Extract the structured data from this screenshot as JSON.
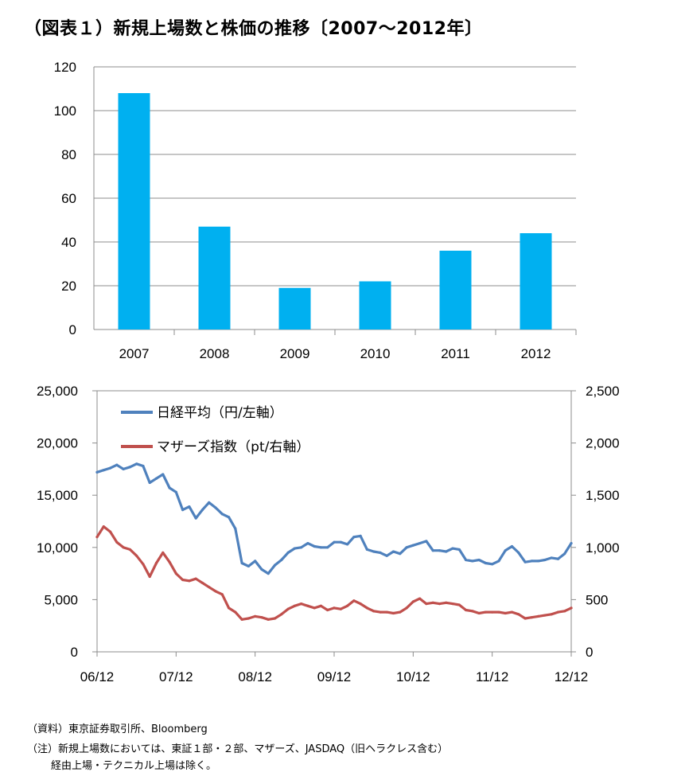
{
  "title": "（図表１）新規上場数と株価の推移〔2007～2012年〕",
  "chart_data": [
    {
      "type": "bar",
      "categories": [
        "2007",
        "2008",
        "2009",
        "2010",
        "2011",
        "2012"
      ],
      "values": [
        108,
        47,
        19,
        22,
        36,
        44
      ],
      "ylim": [
        0,
        120
      ],
      "yticks": [
        "0",
        "20",
        "40",
        "60",
        "80",
        "100",
        "120"
      ],
      "grid": true,
      "color": "#00B0F0"
    },
    {
      "type": "line",
      "x_ticks": [
        "06/12",
        "07/12",
        "08/12",
        "09/12",
        "10/12",
        "11/12",
        "12/12"
      ],
      "y_left": {
        "ticks": [
          "0",
          "5,000",
          "10,000",
          "15,000",
          "20,000",
          "25,000"
        ],
        "range": [
          0,
          25000
        ]
      },
      "y_right": {
        "ticks": [
          "0",
          "500",
          "1,000",
          "1,500",
          "2,000",
          "2,500"
        ],
        "range": [
          0,
          2500
        ]
      },
      "legend_position": "top-left",
      "series": [
        {
          "name": "日経平均（円/左軸）",
          "color": "#4F81BD",
          "axis": "left",
          "x": [
            "06/12",
            "07/01",
            "07/02",
            "07/03",
            "07/04",
            "07/05",
            "07/06",
            "07/07",
            "07/08",
            "07/09",
            "07/10",
            "07/11",
            "07/12",
            "08/01",
            "08/02",
            "08/03",
            "08/04",
            "08/05",
            "08/06",
            "08/07",
            "08/08",
            "08/09",
            "08/10",
            "08/11",
            "08/12",
            "09/01",
            "09/02",
            "09/03",
            "09/04",
            "09/05",
            "09/06",
            "09/07",
            "09/08",
            "09/09",
            "09/10",
            "09/11",
            "09/12",
            "10/01",
            "10/02",
            "10/03",
            "10/04",
            "10/05",
            "10/06",
            "10/07",
            "10/08",
            "10/09",
            "10/10",
            "10/11",
            "10/12",
            "11/01",
            "11/02",
            "11/03",
            "11/04",
            "11/05",
            "11/06",
            "11/07",
            "11/08",
            "11/09",
            "11/10",
            "11/11",
            "11/12",
            "12/01",
            "12/02",
            "12/03",
            "12/04",
            "12/05",
            "12/06",
            "12/07",
            "12/08",
            "12/09",
            "12/10",
            "12/11",
            "12/12"
          ],
          "values": [
            17200,
            17400,
            17600,
            17900,
            17500,
            17700,
            18000,
            17800,
            16200,
            16600,
            17000,
            15700,
            15300,
            13600,
            13900,
            12800,
            13600,
            14300,
            13800,
            13200,
            12900,
            11800,
            8500,
            8200,
            8700,
            7900,
            7500,
            8300,
            8800,
            9500,
            9900,
            10000,
            10400,
            10100,
            10000,
            10000,
            10500,
            10500,
            10300,
            11000,
            11100,
            9800,
            9600,
            9500,
            9200,
            9600,
            9400,
            10000,
            10200,
            10400,
            10600,
            9700,
            9700,
            9600,
            9900,
            9800,
            8800,
            8700,
            8800,
            8500,
            8400,
            8700,
            9700,
            10100,
            9500,
            8600,
            8700,
            8700,
            8800,
            9000,
            8900,
            9400,
            10400
          ]
        },
        {
          "name": "マザーズ指数（pt/右軸）",
          "color": "#C0504D",
          "axis": "right",
          "x": [
            "06/12",
            "07/01",
            "07/02",
            "07/03",
            "07/04",
            "07/05",
            "07/06",
            "07/07",
            "07/08",
            "07/09",
            "07/10",
            "07/11",
            "07/12",
            "08/01",
            "08/02",
            "08/03",
            "08/04",
            "08/05",
            "08/06",
            "08/07",
            "08/08",
            "08/09",
            "08/10",
            "08/11",
            "08/12",
            "09/01",
            "09/02",
            "09/03",
            "09/04",
            "09/05",
            "09/06",
            "09/07",
            "09/08",
            "09/09",
            "09/10",
            "09/11",
            "09/12",
            "10/01",
            "10/02",
            "10/03",
            "10/04",
            "10/05",
            "10/06",
            "10/07",
            "10/08",
            "10/09",
            "10/10",
            "10/11",
            "10/12",
            "11/01",
            "11/02",
            "11/03",
            "11/04",
            "11/05",
            "11/06",
            "11/07",
            "11/08",
            "11/09",
            "11/10",
            "11/11",
            "11/12",
            "12/01",
            "12/02",
            "12/03",
            "12/04",
            "12/05",
            "12/06",
            "12/07",
            "12/08",
            "12/09",
            "12/10",
            "12/11",
            "12/12"
          ],
          "values": [
            1100,
            1200,
            1150,
            1050,
            1000,
            980,
            920,
            840,
            720,
            850,
            950,
            860,
            750,
            690,
            680,
            700,
            660,
            620,
            580,
            550,
            420,
            380,
            310,
            320,
            340,
            330,
            310,
            320,
            360,
            410,
            440,
            460,
            440,
            420,
            440,
            400,
            420,
            410,
            440,
            490,
            460,
            420,
            390,
            380,
            380,
            370,
            380,
            420,
            480,
            510,
            460,
            470,
            460,
            470,
            460,
            450,
            400,
            390,
            370,
            380,
            380,
            380,
            370,
            380,
            360,
            320,
            330,
            340,
            350,
            360,
            380,
            390,
            420
          ]
        }
      ]
    }
  ],
  "notes": {
    "source": "（資料）東京証券取引所、Bloomberg",
    "line1": "（注）新規上場数においては、東証１部・２部、マザーズ、JASDAQ（旧ヘラクレス含む）",
    "line2": "経由上場・テクニカル上場は除く。"
  }
}
